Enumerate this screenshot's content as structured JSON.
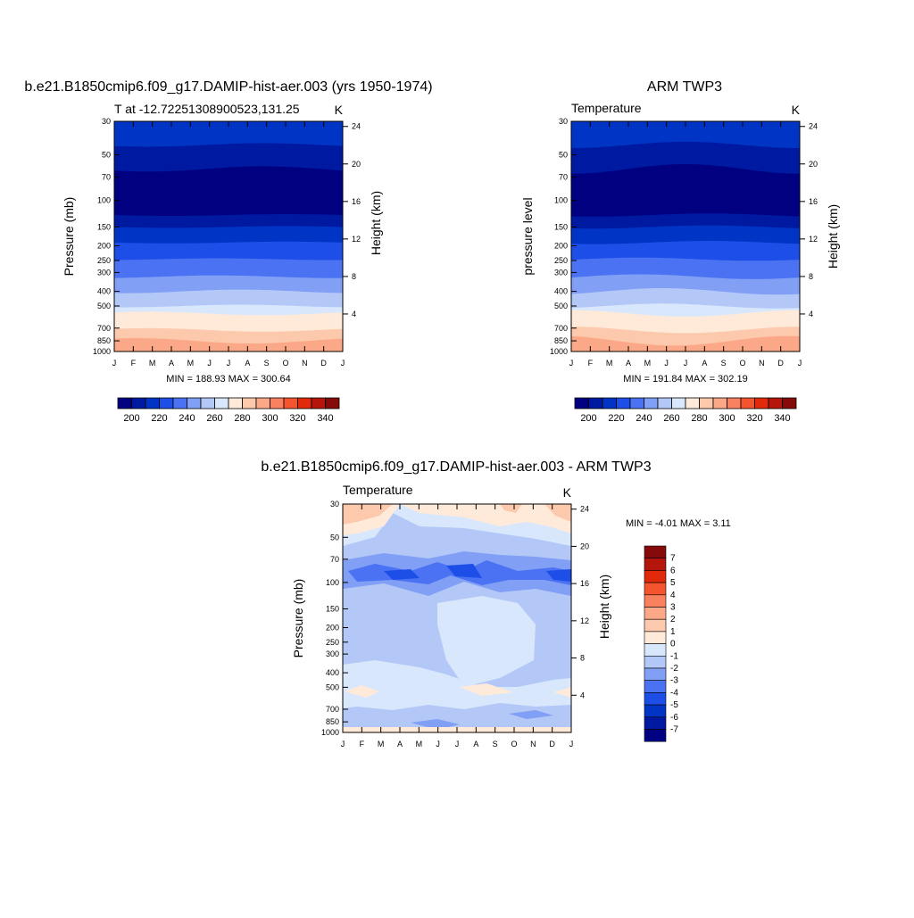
{
  "months": [
    "J",
    "F",
    "M",
    "A",
    "M",
    "J",
    "J",
    "A",
    "S",
    "O",
    "N",
    "D",
    "J"
  ],
  "colorbar_colors": [
    "#000080",
    "#0019a1",
    "#0034c4",
    "#1d4ee8",
    "#4a72f2",
    "#809ff5",
    "#b4c8f8",
    "#d8e7fb",
    "#ffead9",
    "#fdc9ac",
    "#fba888",
    "#f98160",
    "#f4552f",
    "#e12a0c",
    "#b4160b",
    "#870a0a"
  ],
  "chart_data": [
    {
      "type": "heatmap",
      "title": "b.e21.B1850cmip6.f09_g17.DAMIP-hist-aer.003 (yrs 1950-1974)",
      "subtitle": "T at -12.72251308900523,131.25",
      "units": "K",
      "ylabel": "Pressure (mb)",
      "ylabel_right": "Height (km)",
      "stats": "MIN = 188.93 MAX = 300.64",
      "pressure_ticks": [
        "30",
        "50",
        "70",
        "100",
        "150",
        "200",
        "250",
        "300",
        "400",
        "500",
        "700",
        "850",
        "1000"
      ],
      "height_ticks": [
        "24",
        "20",
        "16",
        "12",
        "8",
        "4"
      ],
      "colorbar_labels": [
        "200",
        "220",
        "240",
        "260",
        "280",
        "300",
        "320",
        "340"
      ],
      "contours": [
        200,
        210,
        220,
        230,
        240,
        250,
        260,
        270,
        280,
        290
      ]
    },
    {
      "type": "heatmap",
      "title": "ARM TWP3",
      "subtitle": "Temperature",
      "units": "K",
      "ylabel": "pressure level",
      "ylabel_right": "Height (km)",
      "stats": "MIN = 191.84 MAX = 302.19",
      "pressure_ticks": [
        "30",
        "50",
        "70",
        "100",
        "150",
        "200",
        "250",
        "300",
        "400",
        "500",
        "700",
        "850",
        "1000"
      ],
      "height_ticks": [
        "24",
        "20",
        "16",
        "12",
        "8",
        "4"
      ],
      "colorbar_labels": [
        "200",
        "220",
        "240",
        "260",
        "280",
        "300",
        "320",
        "340"
      ],
      "contours": [
        200,
        210,
        220,
        230,
        240,
        250,
        260,
        270,
        280,
        290
      ]
    },
    {
      "type": "heatmap",
      "title": "b.e21.B1850cmip6.f09_g17.DAMIP-hist-aer.003 - ARM TWP3",
      "subtitle": "Temperature",
      "units": "K",
      "ylabel": "Pressure (mb)",
      "ylabel_right": "Height (km)",
      "stats": "MIN =  -4.01 MAX =   3.11",
      "pressure_ticks": [
        "30",
        "50",
        "70",
        "100",
        "150",
        "200",
        "250",
        "300",
        "400",
        "500",
        "700",
        "850",
        "1000"
      ],
      "height_ticks": [
        "24",
        "20",
        "16",
        "12",
        "8",
        "4"
      ],
      "colorbar_labels": [
        "7",
        "6",
        "5",
        "4",
        "3",
        "2",
        "1",
        "0",
        "-1",
        "-2",
        "-3",
        "-4",
        "-5",
        "-6",
        "-7"
      ],
      "contours": [
        -7,
        -6,
        -5,
        -4,
        -3,
        -2,
        -1,
        0,
        1,
        2,
        3,
        4,
        5,
        6,
        7
      ]
    }
  ]
}
